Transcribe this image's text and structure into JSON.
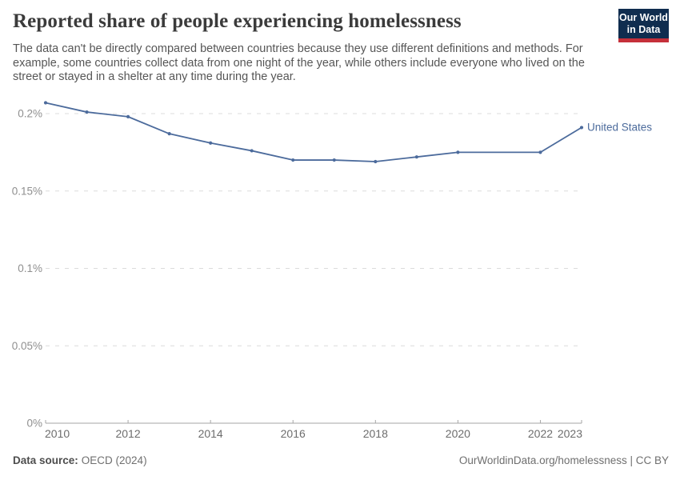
{
  "header": {
    "title": "Reported share of people experiencing homelessness",
    "subtitle": "The data can't be directly compared between countries because they use different definitions and methods. For example, some countries collect data from one night of the year, while others include everyone who lived on the street or stayed in a shelter at any time during the year."
  },
  "logo": {
    "line1": "Our World",
    "line2": "in Data",
    "bg_color": "#102D4F",
    "accent_color": "#C5303A"
  },
  "chart_data": {
    "type": "line",
    "title": "Reported share of people experiencing homelessness",
    "unit": "%",
    "grid": "dashed-horizontal",
    "legend_position": "line-end-label",
    "xlim": [
      2010,
      2023
    ],
    "ylim": [
      0,
      0.2
    ],
    "x_ticks": [
      2010,
      2012,
      2014,
      2016,
      2018,
      2020,
      2022,
      2023
    ],
    "y_ticks": [
      {
        "value": 0,
        "label": "0%"
      },
      {
        "value": 0.05,
        "label": "0.05%"
      },
      {
        "value": 0.1,
        "label": "0.1%"
      },
      {
        "value": 0.15,
        "label": "0.15%"
      },
      {
        "value": 0.2,
        "label": "0.2%"
      }
    ],
    "series": [
      {
        "name": "United States",
        "color": "#4C6B9C",
        "points": [
          {
            "x": 2010,
            "y": 0.207
          },
          {
            "x": 2011,
            "y": 0.201
          },
          {
            "x": 2012,
            "y": 0.198
          },
          {
            "x": 2013,
            "y": 0.187
          },
          {
            "x": 2014,
            "y": 0.181
          },
          {
            "x": 2015,
            "y": 0.176
          },
          {
            "x": 2016,
            "y": 0.17
          },
          {
            "x": 2017,
            "y": 0.17
          },
          {
            "x": 2018,
            "y": 0.169
          },
          {
            "x": 2019,
            "y": 0.172
          },
          {
            "x": 2020,
            "y": 0.175
          },
          {
            "x": 2022,
            "y": 0.175
          },
          {
            "x": 2023,
            "y": 0.191
          }
        ]
      }
    ],
    "colors": {
      "gridline": "#dcdcdc",
      "axis": "#a6a6a6",
      "y_tick_label": "#8f8f8f",
      "x_tick_label": "#6d6d6d"
    }
  },
  "footer": {
    "source_label": "Data source:",
    "source_value": "OECD (2024)",
    "attribution": "OurWorldinData.org/homelessness | CC BY"
  }
}
